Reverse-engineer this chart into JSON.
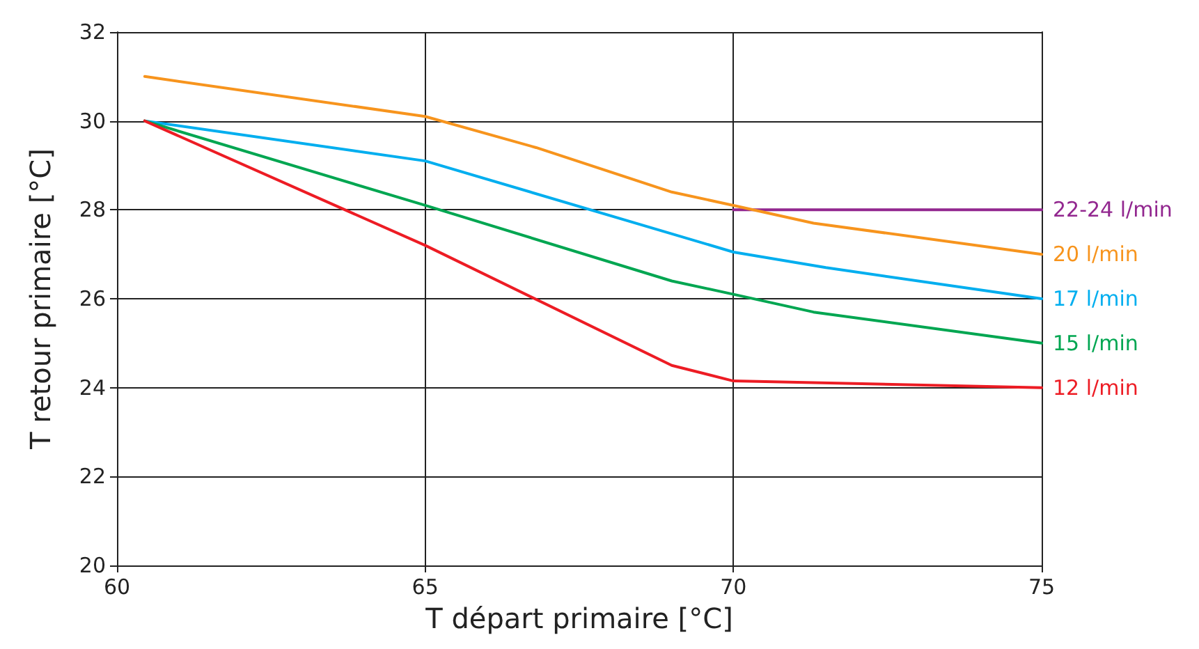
{
  "chart_data": {
    "type": "line",
    "xlabel": "T départ primaire [°C]",
    "ylabel": "T retour primaire [°C]",
    "xlim": [
      60,
      75
    ],
    "xticks": [
      60,
      65,
      70,
      75
    ],
    "ylim": [
      20,
      32
    ],
    "yticks": [
      20,
      22,
      24,
      26,
      28,
      30,
      32
    ],
    "grid": true,
    "legend": false,
    "marker": "none",
    "line_style": "solid",
    "series": [
      {
        "name": "22-24 l/min",
        "color": "#92278f",
        "x": [
          70,
          75
        ],
        "values": [
          28.0,
          28.0
        ]
      },
      {
        "name": "20 l/min",
        "color": "#f7941d",
        "x": [
          60.45,
          65,
          66.8,
          69,
          70,
          71.3,
          75
        ],
        "values": [
          31.0,
          30.1,
          29.4,
          28.4,
          28.1,
          27.7,
          27.0
        ]
      },
      {
        "name": "17 l/min",
        "color": "#00aeef",
        "x": [
          60.45,
          65,
          70,
          71.5,
          75
        ],
        "values": [
          30.0,
          29.1,
          27.05,
          26.7,
          26.0
        ]
      },
      {
        "name": "15 l/min",
        "color": "#00a651",
        "x": [
          60.45,
          65,
          69,
          70,
          71.3,
          75
        ],
        "values": [
          30.0,
          28.1,
          26.4,
          26.1,
          25.7,
          25.0
        ]
      },
      {
        "name": "12 l/min",
        "color": "#ed1c24",
        "x": [
          60.45,
          65,
          69,
          70,
          75
        ],
        "values": [
          30.0,
          27.2,
          24.5,
          24.15,
          24.0
        ]
      }
    ]
  }
}
